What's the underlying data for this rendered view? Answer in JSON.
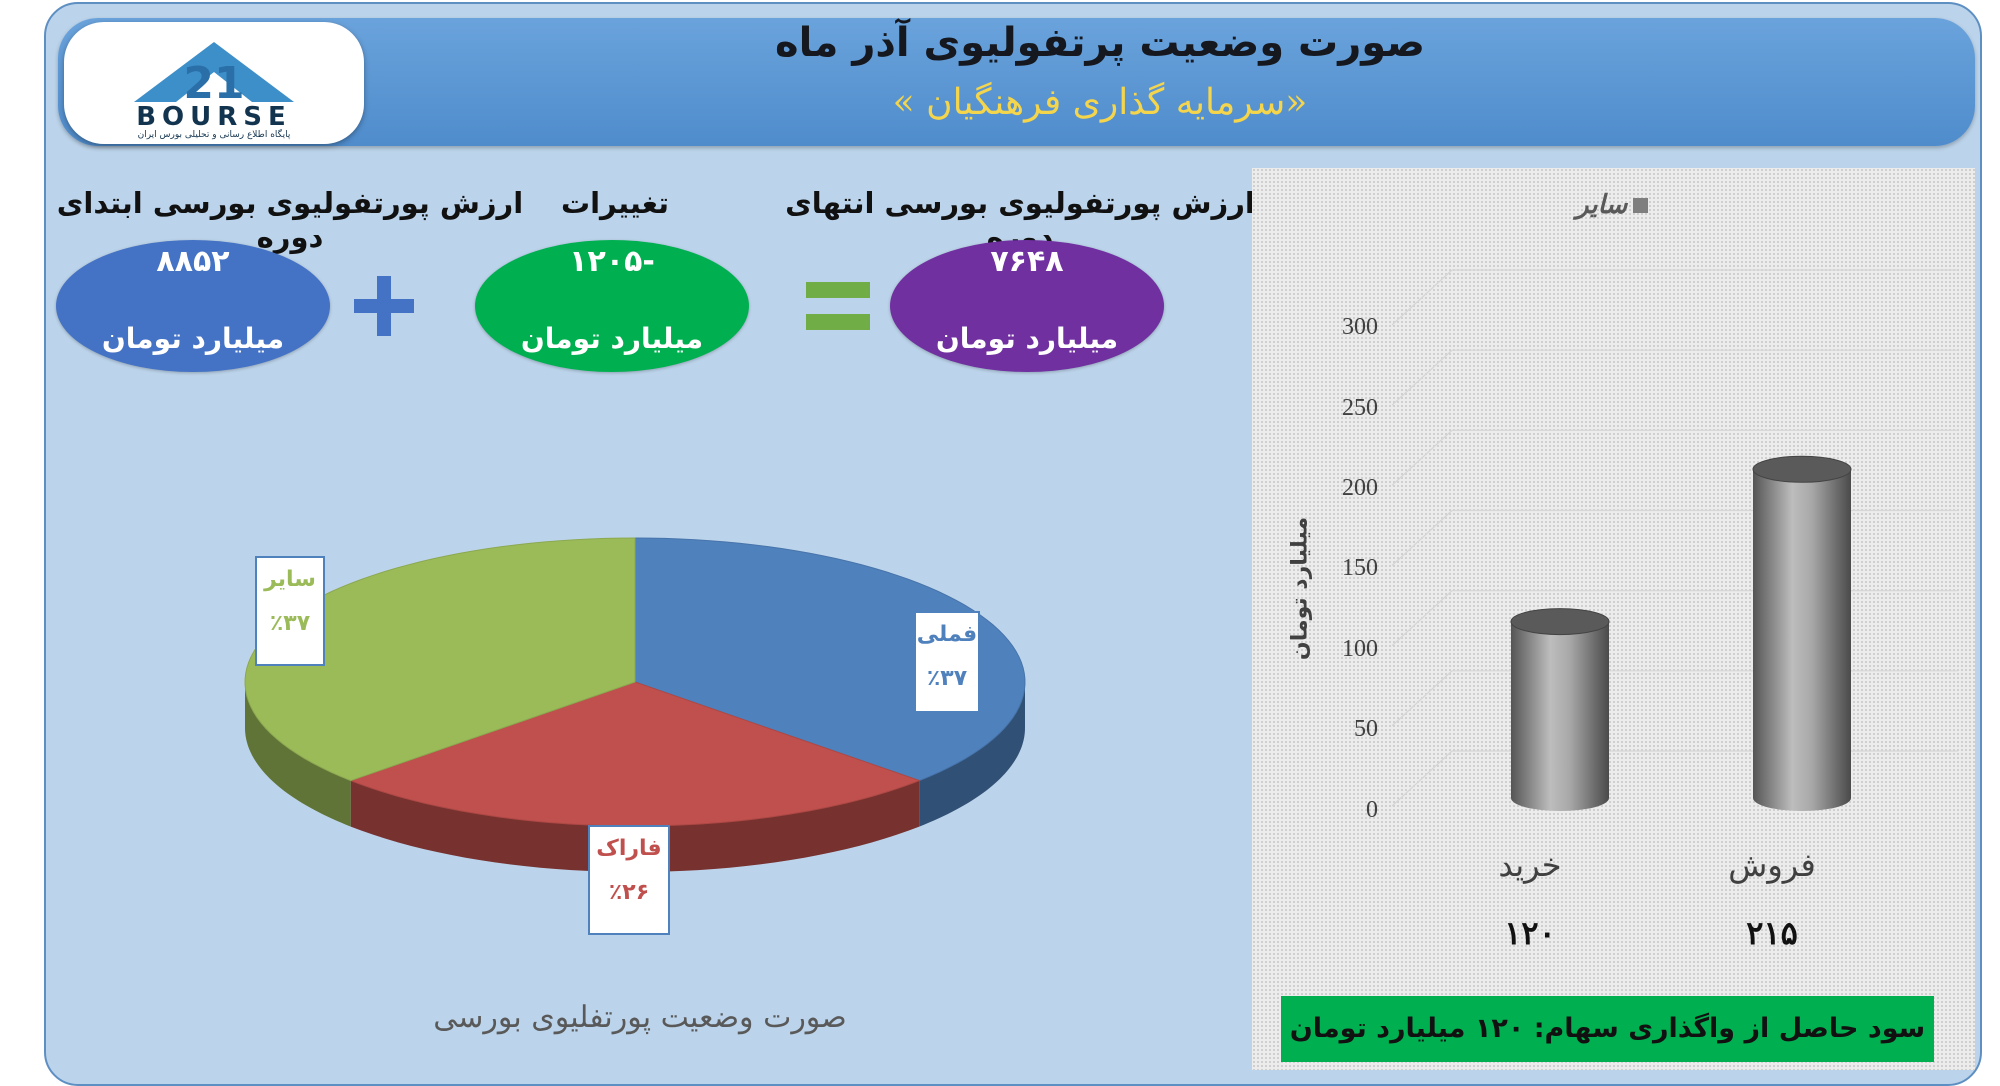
{
  "header": {
    "title": "صورت وضعیت پرتفولیوی آذر ماه",
    "subtitle": "«سرمایه گذاری فرهنگیان »"
  },
  "logo": {
    "wordmark": "BOURSE",
    "tagline": "پایگاه اطلاع رسانی و تحلیلی بورس ایران"
  },
  "metrics": {
    "start": {
      "label": "ارزش پورتفولیوی بورسی ابتدای دوره",
      "value": "۸۸۵۲",
      "unit": "میلیارد تومان",
      "color": "#4472c4"
    },
    "change": {
      "label": "تغییرات",
      "value": "-۱۲۰۵",
      "unit": "میلیارد تومان",
      "color": "#00b050"
    },
    "end": {
      "label": "ارزش پورتفولیوی بورسی انتهای دوره",
      "value": "۷۶۴۸",
      "unit": "میلیارد تومان",
      "color": "#7030a0"
    },
    "plus_color": "#4472c4",
    "equals_color": "#70ad47"
  },
  "profit_note": "سود حاصل از واگذاری سهام: ۱۲۰ میلیارد تومان",
  "chart_data": [
    {
      "type": "pie",
      "title": "صورت وضعیت پورتفلیوی بورسی",
      "categories": [
        "فملی",
        "فاراک",
        "سایر"
      ],
      "value_labels": [
        "٪۳۷",
        "٪۲۶",
        "٪۳۷"
      ],
      "values": [
        37,
        26,
        37
      ],
      "colors": [
        "#4f81bd",
        "#c0504d",
        "#9bbb59"
      ]
    },
    {
      "type": "bar",
      "categories": [
        "خرید",
        "فروش"
      ],
      "value_labels": [
        "۱۲۰",
        "۲۱۵"
      ],
      "series": [
        {
          "name": "سایر",
          "values": [
            120,
            215
          ]
        }
      ],
      "ylabel": "میلیارد تومان",
      "ylim": [
        0,
        300
      ],
      "yticks": [
        "0",
        "50",
        "100",
        "150",
        "200",
        "250",
        "300"
      ],
      "grid": true,
      "legend": "top",
      "bar_color": "#7f7f7f"
    }
  ]
}
